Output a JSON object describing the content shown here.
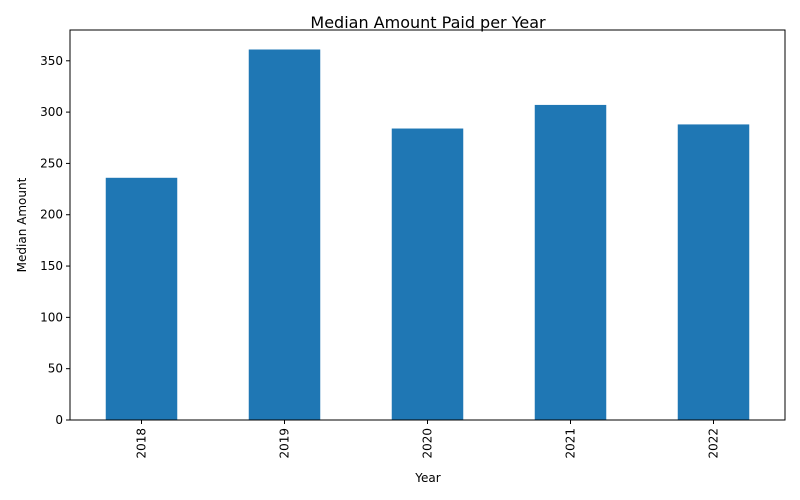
{
  "chart_data": {
    "type": "bar",
    "title": "Median Amount Paid per Year",
    "xlabel": "Year",
    "ylabel": "Median Amount",
    "categories": [
      "2018",
      "2019",
      "2020",
      "2021",
      "2022"
    ],
    "values": [
      236,
      361,
      284,
      307,
      288
    ],
    "ylim": [
      0,
      380
    ],
    "yticks": [
      0,
      50,
      100,
      150,
      200,
      250,
      300,
      350
    ],
    "bar_color": "#1f77b4",
    "grid": false,
    "legend": "none"
  }
}
